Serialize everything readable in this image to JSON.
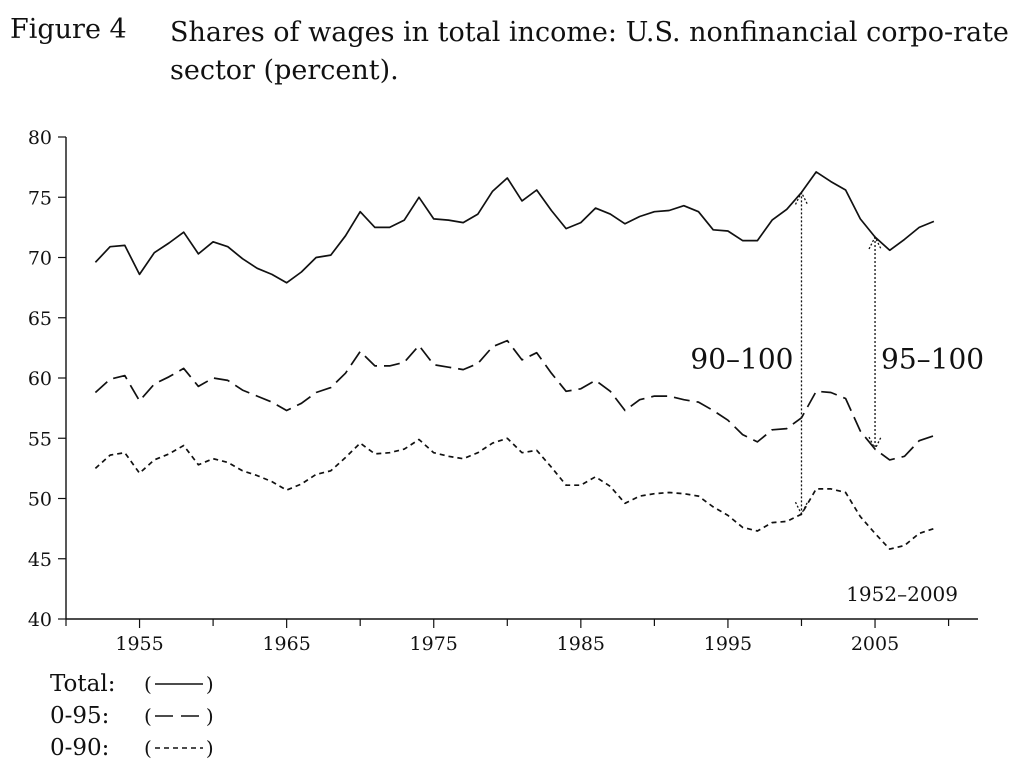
{
  "figure": {
    "label": "Figure 4",
    "title": "Shares of wages in total income: U.S. nonfinancial corpo-rate sector (percent)."
  },
  "chart_data": {
    "type": "line",
    "title": "Shares of wages in total income: U.S. nonfinancial corporate sector (percent).",
    "xlabel": "",
    "ylabel": "",
    "xlim": [
      1950,
      2012
    ],
    "ylim": [
      40,
      80
    ],
    "x_ticks": [
      1955,
      1965,
      1975,
      1985,
      1995,
      2005
    ],
    "y_ticks": [
      40,
      45,
      50,
      55,
      60,
      65,
      70,
      75,
      80
    ],
    "grid": false,
    "legend_position": "bottom-left",
    "x": [
      1952,
      1953,
      1954,
      1955,
      1956,
      1957,
      1958,
      1959,
      1960,
      1961,
      1962,
      1963,
      1964,
      1965,
      1966,
      1967,
      1968,
      1969,
      1970,
      1971,
      1972,
      1973,
      1974,
      1975,
      1976,
      1977,
      1978,
      1979,
      1980,
      1981,
      1982,
      1983,
      1984,
      1985,
      1986,
      1987,
      1988,
      1989,
      1990,
      1991,
      1992,
      1993,
      1994,
      1995,
      1996,
      1997,
      1998,
      1999,
      2000,
      2001,
      2002,
      2003,
      2004,
      2005,
      2006,
      2007,
      2008,
      2009
    ],
    "series": [
      {
        "name": "Total",
        "style": "solid",
        "values": [
          69.6,
          70.9,
          71.0,
          68.6,
          70.4,
          71.2,
          72.1,
          70.3,
          71.3,
          70.9,
          69.9,
          69.1,
          68.6,
          67.9,
          68.8,
          70.0,
          70.2,
          71.8,
          73.8,
          72.5,
          72.5,
          73.1,
          75.0,
          73.2,
          73.1,
          72.9,
          73.6,
          75.5,
          76.6,
          74.7,
          75.6,
          73.9,
          72.4,
          72.9,
          74.1,
          73.6,
          72.8,
          73.4,
          73.8,
          73.9,
          74.3,
          73.8,
          72.3,
          72.2,
          71.4,
          71.4,
          73.1,
          74.0,
          75.4,
          77.1,
          76.3,
          75.6,
          73.2,
          71.7,
          70.6,
          71.5,
          72.5,
          73.0
        ]
      },
      {
        "name": "0-95",
        "style": "dashed",
        "values": [
          58.8,
          59.9,
          60.2,
          58.1,
          59.5,
          60.1,
          60.8,
          59.3,
          60.0,
          59.8,
          59.0,
          58.5,
          58.0,
          57.3,
          57.9,
          58.8,
          59.2,
          60.4,
          62.2,
          61.0,
          61.0,
          61.3,
          62.7,
          61.1,
          60.9,
          60.7,
          61.2,
          62.6,
          63.1,
          61.5,
          62.1,
          60.4,
          58.9,
          59.1,
          59.8,
          58.9,
          57.3,
          58.2,
          58.5,
          58.5,
          58.2,
          58.0,
          57.3,
          56.5,
          55.3,
          54.7,
          55.7,
          55.8,
          56.7,
          58.9,
          58.8,
          58.3,
          55.6,
          54.1,
          53.2,
          53.5,
          54.8,
          55.2
        ]
      },
      {
        "name": "0-90",
        "style": "dotted",
        "values": [
          52.5,
          53.6,
          53.8,
          52.1,
          53.2,
          53.7,
          54.4,
          52.8,
          53.3,
          53.0,
          52.3,
          51.9,
          51.4,
          50.7,
          51.2,
          52.0,
          52.3,
          53.4,
          54.6,
          53.7,
          53.8,
          54.1,
          54.9,
          53.8,
          53.5,
          53.3,
          53.8,
          54.6,
          55.0,
          53.8,
          54.0,
          52.6,
          51.1,
          51.1,
          51.8,
          51.0,
          49.6,
          50.2,
          50.4,
          50.5,
          50.4,
          50.2,
          49.3,
          48.6,
          47.6,
          47.3,
          48.0,
          48.1,
          48.7,
          50.8,
          50.8,
          50.5,
          48.5,
          47.1,
          45.8,
          46.1,
          47.1,
          47.5
        ]
      }
    ],
    "annotations": [
      {
        "text": "90–100",
        "x": 2000,
        "from": 75.4,
        "to": 48.7
      },
      {
        "text": "95–100",
        "x": 2005,
        "from": 71.7,
        "to": 54.1
      },
      {
        "text": "1952–2009"
      }
    ]
  },
  "legend": [
    {
      "label": "Total:",
      "sample": "(——)"
    },
    {
      "label": "0-95:",
      "sample": "(– –)"
    },
    {
      "label": "0-90:",
      "sample": "(-----)"
    }
  ]
}
